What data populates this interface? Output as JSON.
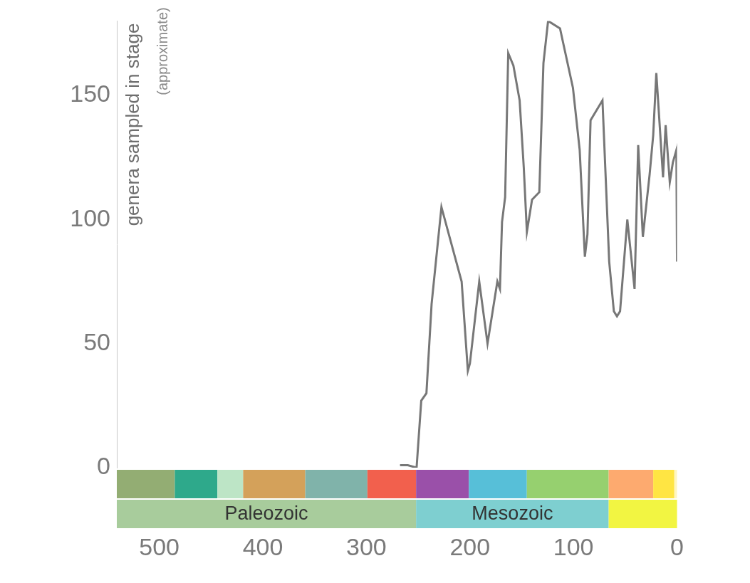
{
  "chart_data": {
    "type": "line",
    "y_label": "genera sampled in stage",
    "y_label_note": "(approximate)",
    "x": [
      267.5,
      260,
      251.5,
      247,
      242,
      237,
      227.5,
      208,
      202,
      200,
      191,
      183,
      173.5,
      171,
      169,
      166,
      163,
      158,
      152,
      148,
      145,
      140,
      133,
      129,
      124.5,
      113,
      100.5,
      94,
      89,
      86.5,
      83.5,
      72,
      65.5,
      61,
      58,
      55,
      48,
      41,
      37.5,
      33,
      26.5,
      23,
      20,
      13.5,
      11,
      7,
      4,
      0.6,
      0
    ],
    "values": [
      1,
      1,
      0,
      27,
      30,
      66,
      105,
      75,
      39,
      42,
      75,
      50,
      75,
      72,
      99,
      109,
      167,
      162,
      148,
      121,
      95,
      108,
      111,
      163,
      180,
      177,
      153,
      128,
      85,
      94,
      140,
      148,
      83,
      63,
      61,
      63,
      100,
      72,
      130,
      93,
      118,
      134,
      159,
      117,
      138,
      115,
      123,
      128,
      83
    ],
    "color": "#777777",
    "xlim": [
      541,
      0
    ],
    "xticks": [
      500,
      400,
      300,
      200,
      100,
      0
    ],
    "ylim": [
      0,
      180
    ],
    "yticks": [
      0,
      50,
      100,
      150
    ],
    "grid": false,
    "periods": [
      {
        "start": 541,
        "end": 485,
        "color": "#93ad73"
      },
      {
        "start": 485,
        "end": 443.8,
        "color": "#2ea98b"
      },
      {
        "start": 443.8,
        "end": 419,
        "color": "#bde5c6"
      },
      {
        "start": 419,
        "end": 359,
        "color": "#d4a15a"
      },
      {
        "start": 359,
        "end": 299,
        "color": "#80b3aa"
      },
      {
        "start": 299,
        "end": 252,
        "color": "#f2604d"
      },
      {
        "start": 252,
        "end": 201,
        "color": "#9a50a9"
      },
      {
        "start": 201,
        "end": 145,
        "color": "#57bfd8"
      },
      {
        "start": 145,
        "end": 66,
        "color": "#96d06f"
      },
      {
        "start": 66,
        "end": 23,
        "color": "#fdaa6f"
      },
      {
        "start": 23,
        "end": 2.6,
        "color": "#ffe543"
      },
      {
        "start": 2.6,
        "end": 0,
        "color": "#fff6c0"
      }
    ],
    "eras": [
      {
        "start": 541,
        "end": 252,
        "color": "#a8cc9c",
        "label": "Paleozoic"
      },
      {
        "start": 252,
        "end": 66,
        "color": "#7ecfd0",
        "label": "Mesozoic"
      },
      {
        "start": 66,
        "end": 0,
        "color": "#f2f542"
      }
    ]
  }
}
